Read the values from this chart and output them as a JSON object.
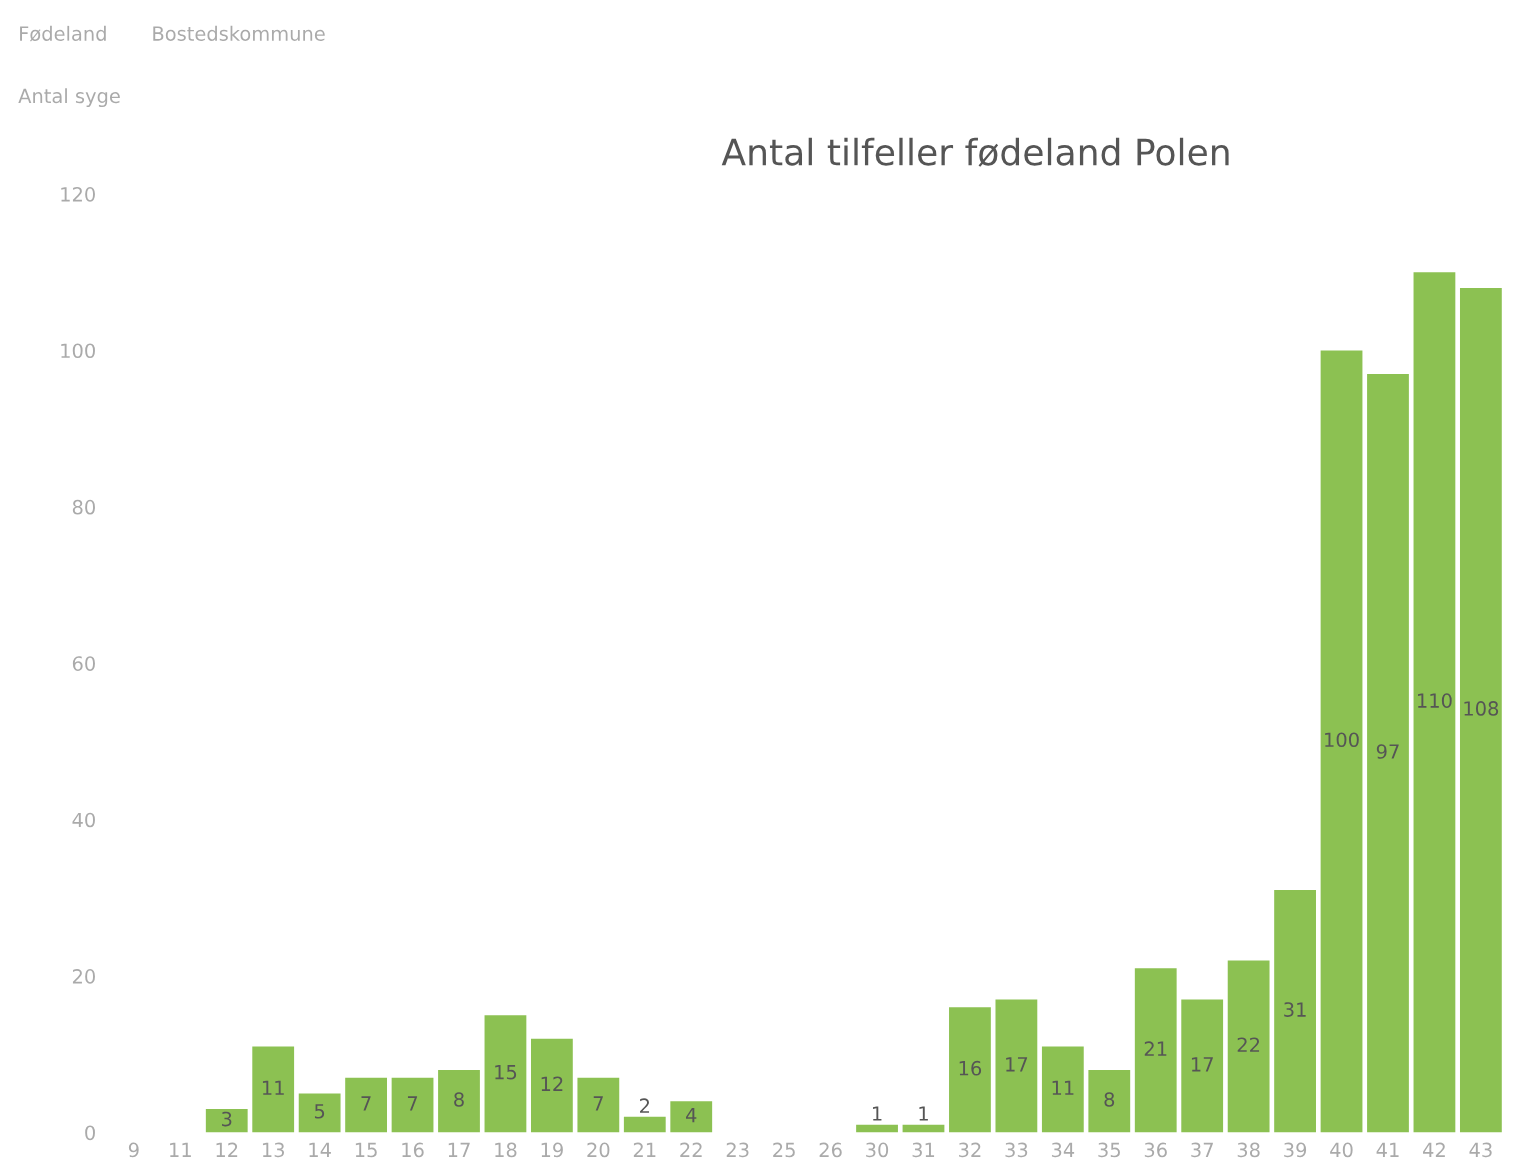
{
  "chart_data": {
    "type": "bar",
    "title": "Antal tilfeller fødeland Polen",
    "ylabel": "Antal syge",
    "annotations": [
      "Fødeland",
      "Bostedskommune"
    ],
    "categories": [
      "9",
      "11",
      "12",
      "13",
      "14",
      "15",
      "16",
      "17",
      "18",
      "19",
      "20",
      "21",
      "22",
      "23",
      "25",
      "26",
      "30",
      "31",
      "32",
      "33",
      "34",
      "35",
      "36",
      "37",
      "38",
      "39",
      "40",
      "41",
      "42",
      "43"
    ],
    "values": [
      0,
      0,
      3,
      11,
      5,
      7,
      7,
      8,
      15,
      12,
      7,
      2,
      4,
      0,
      0,
      0,
      1,
      1,
      16,
      17,
      11,
      8,
      21,
      17,
      22,
      31,
      100,
      97,
      110,
      108
    ],
    "value_labels": [
      null,
      null,
      "3",
      "11",
      "5",
      "7",
      "7",
      "8",
      "15",
      "12",
      "7",
      "2",
      "4",
      null,
      null,
      null,
      "1",
      "1",
      "16",
      "17",
      "11",
      "8",
      "21",
      "17",
      "22",
      "31",
      "100",
      "97",
      "110",
      "108"
    ],
    "color": "#8cc152",
    "ylim": [
      0,
      120
    ],
    "yticks": [
      0,
      20,
      40,
      60,
      80,
      100,
      120
    ],
    "grid": false,
    "legend": false
  }
}
